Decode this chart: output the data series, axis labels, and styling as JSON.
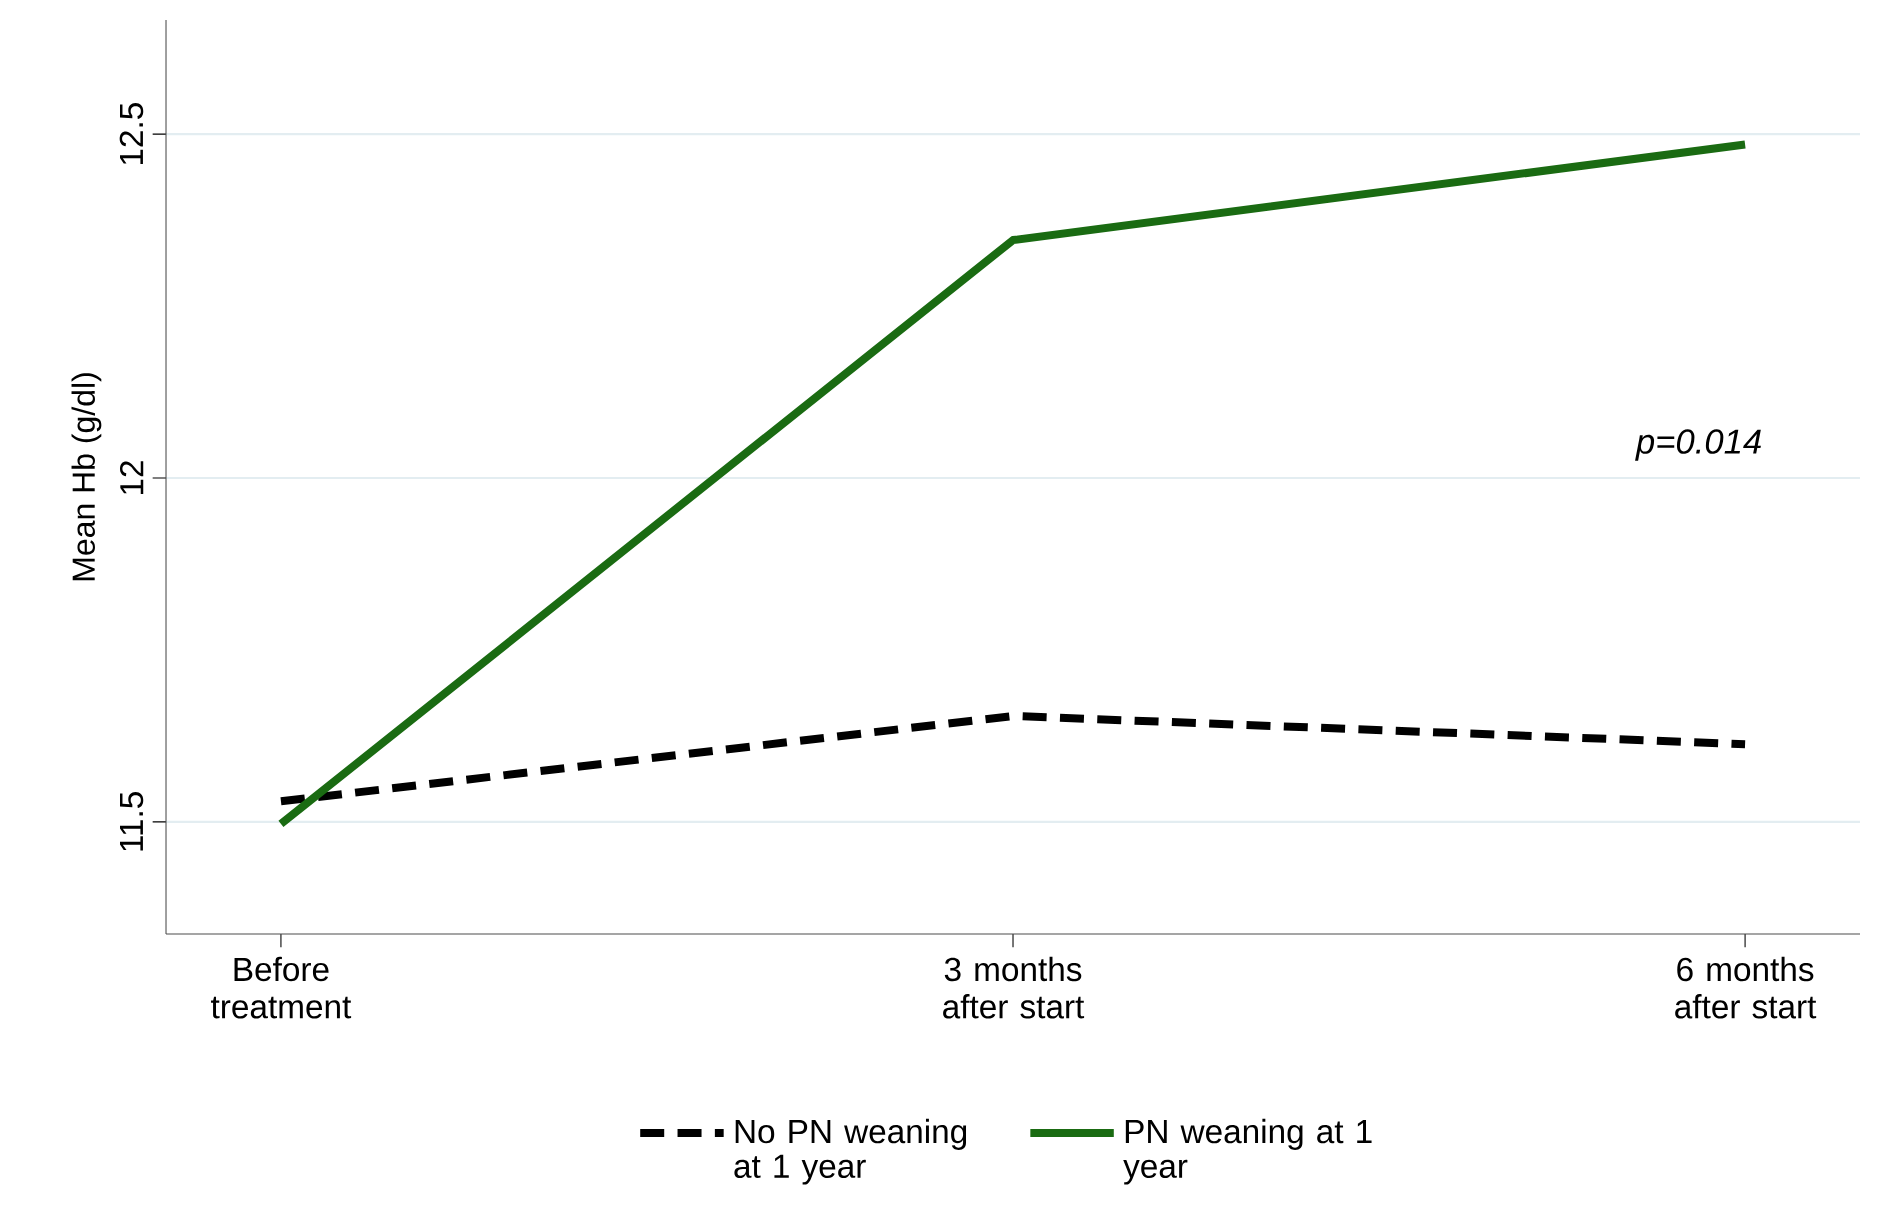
{
  "chart_data": {
    "type": "line",
    "ylabel": "Mean Hb (g/dl)",
    "categories": [
      "Before treatment",
      "3 months after start",
      "6 months after start"
    ],
    "series": [
      {
        "name": "No PN weaning at 1 year",
        "color": "#000000",
        "line_style": "dashed",
        "values": [
          11.53,
          11.654,
          11.613
        ]
      },
      {
        "name": "PN weaning at 1 year",
        "color": "#1a6b12",
        "line_style": "solid",
        "values": [
          11.497,
          12.346,
          12.485
        ]
      }
    ],
    "ylim": [
      11.337,
      12.666
    ],
    "yticks": [
      11.5,
      12,
      12.5
    ],
    "grid": "y",
    "legend": "bottom",
    "marker": "none",
    "annotations": [
      "p=0.014"
    ]
  }
}
